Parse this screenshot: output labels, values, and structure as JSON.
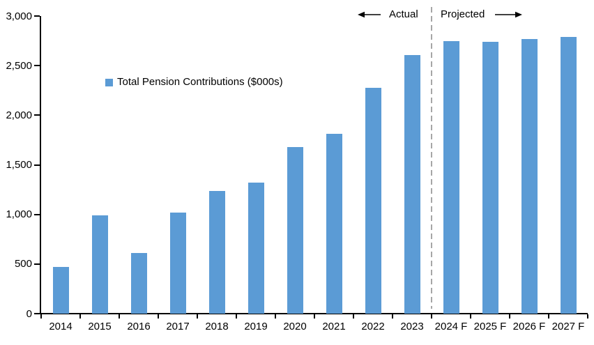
{
  "chart_data": {
    "type": "bar",
    "title": "",
    "series_name": "Total Pension Contributions ($000s)",
    "categories": [
      "2014",
      "2015",
      "2016",
      "2017",
      "2018",
      "2019",
      "2020",
      "2021",
      "2022",
      "2023",
      "2024 F",
      "2025 F",
      "2026 F",
      "2027 F"
    ],
    "values": [
      470,
      990,
      610,
      1020,
      1240,
      1320,
      1680,
      1815,
      2275,
      2610,
      2750,
      2740,
      2765,
      2790
    ],
    "xlabel": "",
    "ylabel": "",
    "ylim": [
      0,
      3000
    ],
    "ytick_values": [
      0,
      500,
      1000,
      1500,
      2000,
      2500,
      3000
    ],
    "ytick_labels": [
      "0",
      "500",
      "1,000",
      "1,500",
      "2,000",
      "2,500",
      "3,000"
    ],
    "grid": false,
    "legend_position": "upper-left-inside",
    "annotations": {
      "actual_label": "Actual",
      "projected_label": "Projected"
    },
    "divider": {
      "after_category": "2023",
      "style": "dashed"
    },
    "colors": {
      "bar": "#5B9BD5",
      "axis": "#000000",
      "divider": "#A6A6A6",
      "text": "#000000"
    }
  }
}
